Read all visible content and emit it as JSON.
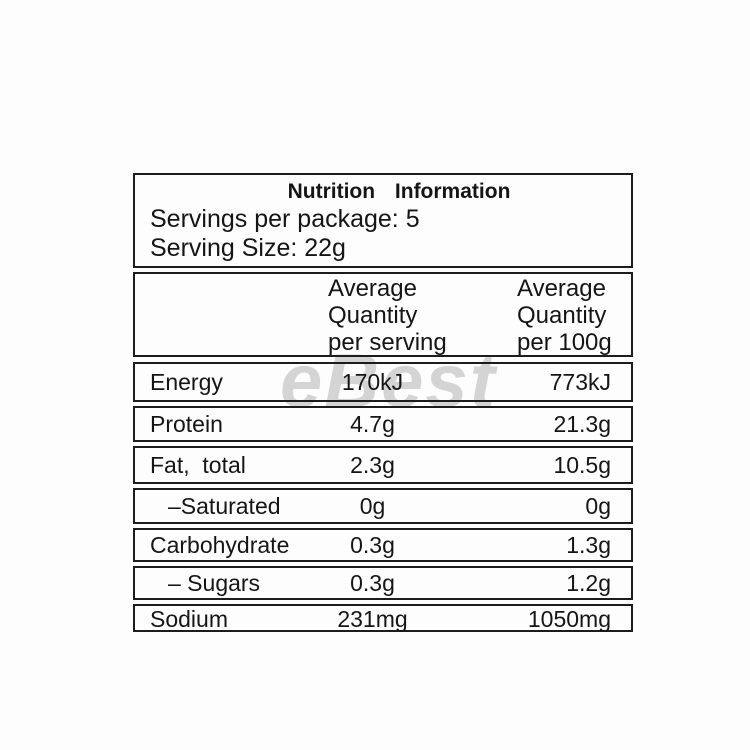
{
  "watermark": {
    "text": "eBest",
    "color": "#c7c7c7"
  },
  "label": {
    "title": "Nutrition Information",
    "servings_per_package": "Servings per package: 5",
    "serving_size": "Serving Size: 22g",
    "columns": {
      "per_serving": "Average\nQuantity\nper serving",
      "per_100g": "Average\nQuantity\nper 100g"
    },
    "rows": [
      {
        "label": "Energy",
        "per_serving": "170kJ",
        "per_100g": "773kJ"
      },
      {
        "label": "Protein",
        "per_serving": "4.7g",
        "per_100g": "21.3g"
      },
      {
        "label": "Fat,  total",
        "per_serving": "2.3g",
        "per_100g": "10.5g"
      },
      {
        "label": "–Saturated",
        "per_serving": "0g",
        "per_100g": "0g"
      },
      {
        "label": "Carbohydrate",
        "per_serving": "0.3g",
        "per_100g": "1.3g"
      },
      {
        "label": "– Sugars",
        "per_serving": "0.3g",
        "per_100g": "1.2g"
      },
      {
        "label": "Sodium",
        "per_serving": "231mg",
        "per_100g": "1050mg"
      }
    ]
  }
}
